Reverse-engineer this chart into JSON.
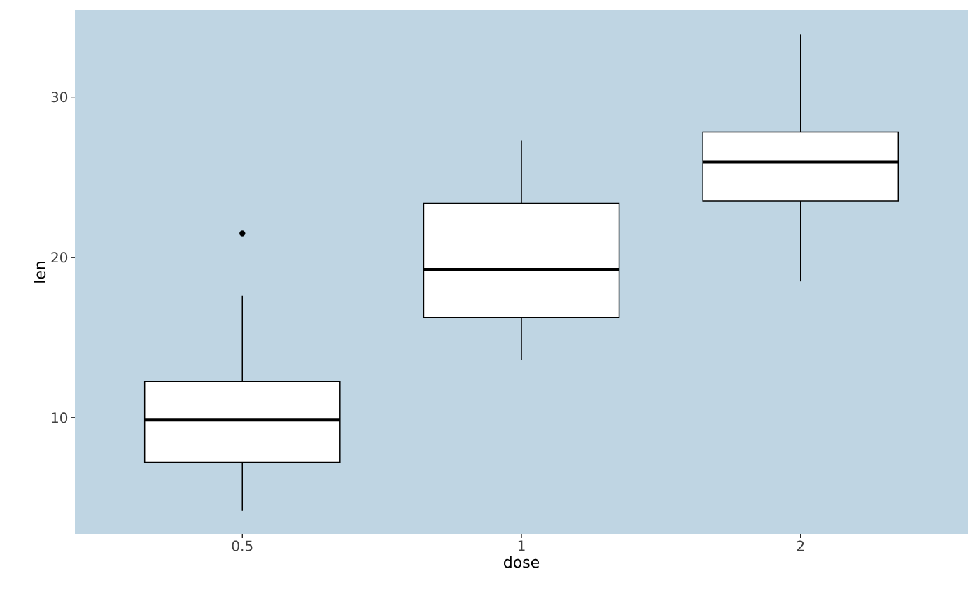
{
  "chart_data": {
    "type": "box",
    "xlabel": "dose",
    "ylabel": "len",
    "categories": [
      "0.5",
      "1",
      "2"
    ],
    "boxes": [
      {
        "low": 4.2,
        "q1": 7.225,
        "median": 9.85,
        "q3": 12.25,
        "high": 17.6,
        "outliers": [
          21.5
        ]
      },
      {
        "low": 13.6,
        "q1": 16.25,
        "median": 19.25,
        "q3": 23.375,
        "high": 27.3
      },
      {
        "low": 18.5,
        "q1": 23.525,
        "median": 25.95,
        "q3": 27.825,
        "high": 33.9
      }
    ],
    "ylim": [
      2.75,
      35.4
    ],
    "yticks": [
      10,
      20,
      30
    ]
  }
}
